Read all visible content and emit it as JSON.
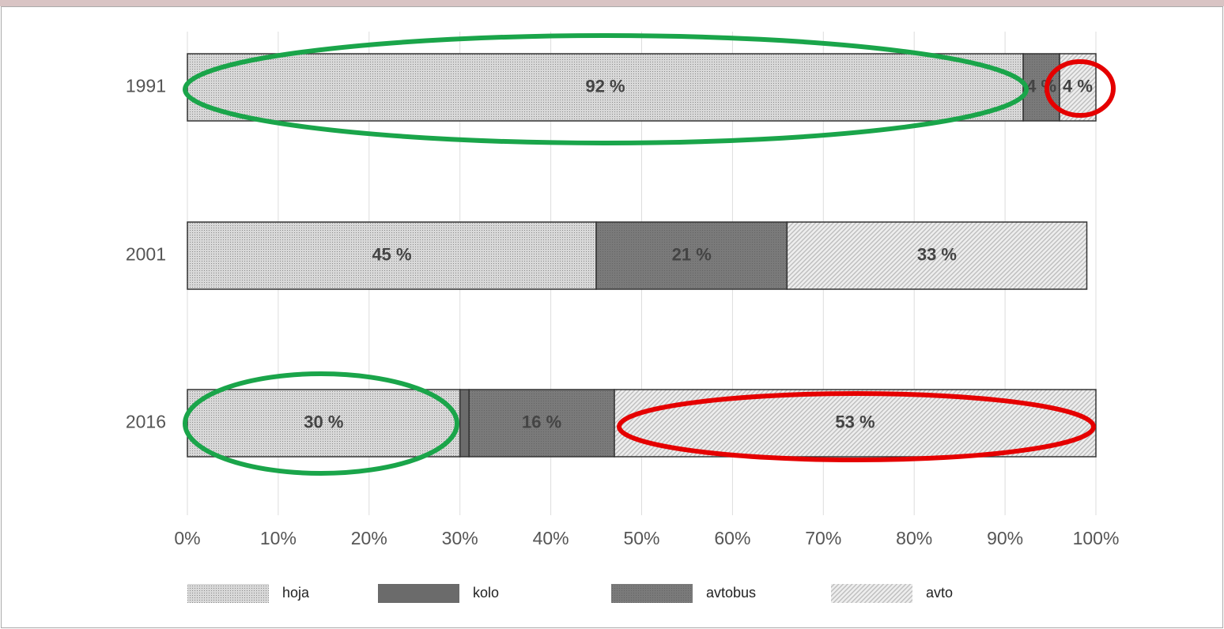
{
  "chart_data": {
    "type": "stacked-barh",
    "categories": [
      "1991",
      "2001",
      "2016"
    ],
    "series": [
      {
        "name": "hoja",
        "color": "#d8d8d8",
        "pattern": "dots",
        "values": [
          92,
          45,
          30
        ],
        "value_labels": [
          "92 %",
          "45 %",
          "30 %"
        ]
      },
      {
        "name": "kolo",
        "color": "#6b6b6b",
        "pattern": "solid",
        "values": [
          null,
          null,
          1
        ],
        "value_labels": [
          null,
          null,
          null
        ]
      },
      {
        "name": "avtobus",
        "color": "#7a7a7a",
        "pattern": "dots",
        "values": [
          4,
          21,
          16
        ],
        "value_labels": [
          "4 %",
          "21 %",
          "16 %"
        ]
      },
      {
        "name": "avto",
        "color": "#bdbdbd",
        "pattern": "hatch",
        "values": [
          4,
          33,
          53
        ],
        "value_labels": [
          "4 %",
          "33 %",
          "53 %"
        ]
      }
    ],
    "xlim": [
      0,
      100
    ],
    "xticks": [
      {
        "value": 0,
        "label": "0%"
      },
      {
        "value": 10,
        "label": "10%"
      },
      {
        "value": 20,
        "label": "20%"
      },
      {
        "value": 30,
        "label": "30%"
      },
      {
        "value": 40,
        "label": "40%"
      },
      {
        "value": 50,
        "label": "50%"
      },
      {
        "value": 60,
        "label": "60%"
      },
      {
        "value": 70,
        "label": "70%"
      },
      {
        "value": 80,
        "label": "80%"
      },
      {
        "value": 90,
        "label": "90%"
      },
      {
        "value": 100,
        "label": "100%"
      }
    ],
    "grid": true
  }
}
